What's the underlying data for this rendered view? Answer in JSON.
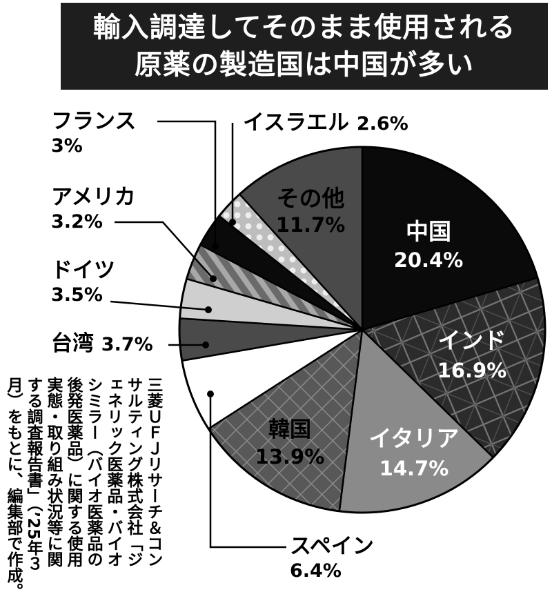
{
  "title_lines": [
    "輸入調達してそのまま使用される",
    "原薬の製造国は中国が多い"
  ],
  "chart_data": {
    "type": "pie",
    "title": "輸入調達してそのまま使用される原薬の製造国は中国が多い",
    "slices": [
      {
        "label": "中国",
        "value": 20.4,
        "pct": "20.4%",
        "color": "#0a0a0a",
        "pattern": "solid",
        "text_color": "#ffffff",
        "placement": "inside"
      },
      {
        "label": "インド",
        "value": 16.9,
        "pct": "16.9%",
        "color": "#2b2b2b",
        "pattern": "crosshatch",
        "text_color": "#ffffff",
        "placement": "inside"
      },
      {
        "label": "イタリア",
        "value": 14.7,
        "pct": "14.7%",
        "color": "#8a8a8a",
        "pattern": "solid",
        "text_color": "#ffffff",
        "placement": "inside"
      },
      {
        "label": "韓国",
        "value": 13.9,
        "pct": "13.9%",
        "color": "#585858",
        "pattern": "diamond",
        "text_color": "#000000",
        "placement": "inside"
      },
      {
        "label": "スペイン",
        "value": 6.4,
        "pct": "6.4%",
        "color": "#ffffff",
        "pattern": "solid",
        "text_color": "#000000",
        "placement": "outside"
      },
      {
        "label": "台湾",
        "value": 3.7,
        "pct": "3.7%",
        "color": "#4a4a4a",
        "pattern": "solid",
        "text_color": "#000000",
        "placement": "outside"
      },
      {
        "label": "ドイツ",
        "value": 3.5,
        "pct": "3.5%",
        "color": "#cfcfcf",
        "pattern": "solid",
        "text_color": "#000000",
        "placement": "outside"
      },
      {
        "label": "アメリカ",
        "value": 3.2,
        "pct": "3.2%",
        "color": "#6a6a6a",
        "pattern": "stripes",
        "text_color": "#000000",
        "placement": "outside"
      },
      {
        "label": "フランス",
        "value": 3.0,
        "pct": "3%",
        "color": "#0a0a0a",
        "pattern": "solid",
        "text_color": "#000000",
        "placement": "outside"
      },
      {
        "label": "イスラエル",
        "value": 2.6,
        "pct": "2.6%",
        "color": "#bdbdbd",
        "pattern": "dots",
        "text_color": "#000000",
        "placement": "outside"
      },
      {
        "label": "その他",
        "value": 11.7,
        "pct": "11.7%",
        "color": "#4a4a4a",
        "pattern": "solid",
        "text_color": "#000000",
        "placement": "inside"
      }
    ]
  },
  "source_note": "三菱ＵＦＪリサーチ＆コン\nサルティング株式会社「ジ\nェネリック医薬品・バイオ\nシミラー（バイオ医薬品の\n後発医薬品）に関する使用\n実態・取り組み状況等に関\nする調査報告書」（’25年３\n月）をもとに、編集部で作成。"
}
